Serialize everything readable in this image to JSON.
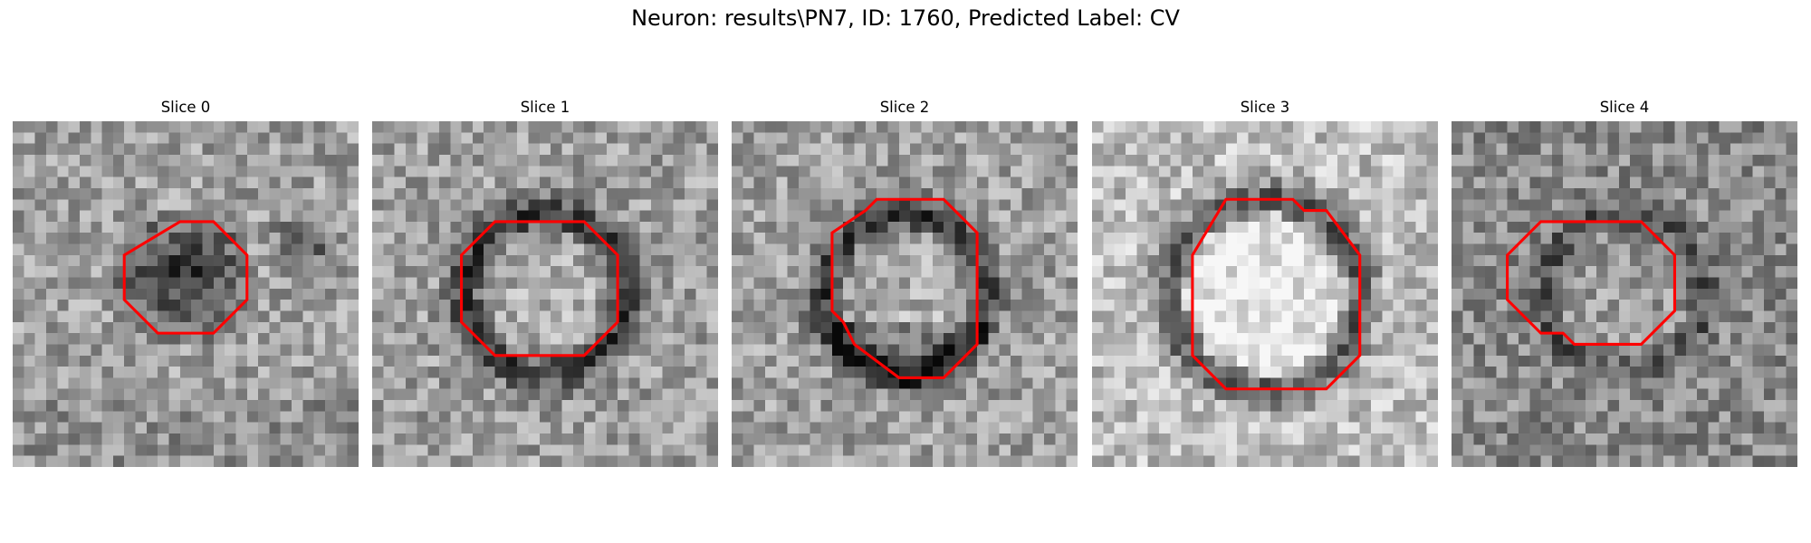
{
  "figure": {
    "title": "Neuron: results\\PN7, ID: 1760, Predicted Label: CV",
    "outline_color": "#ff0000"
  },
  "slices": [
    {
      "title": "Slice 0",
      "seed": 11,
      "pattern": "dark-blob",
      "contour": [
        [
          15,
          9
        ],
        [
          18,
          9
        ],
        [
          21,
          12
        ],
        [
          21,
          16
        ],
        [
          18,
          19
        ],
        [
          13,
          19
        ],
        [
          10,
          16
        ],
        [
          10,
          12
        ]
      ]
    },
    {
      "title": "Slice 1",
      "seed": 23,
      "pattern": "ring",
      "contour": [
        [
          11,
          9
        ],
        [
          19,
          9
        ],
        [
          22,
          12
        ],
        [
          22,
          18
        ],
        [
          19,
          21
        ],
        [
          11,
          21
        ],
        [
          8,
          18
        ],
        [
          8,
          12
        ]
      ]
    },
    {
      "title": "Slice 2",
      "seed": 37,
      "pattern": "ring-dark-bottom",
      "contour": [
        [
          13,
          7
        ],
        [
          19,
          7
        ],
        [
          22,
          10
        ],
        [
          22,
          20
        ],
        [
          19,
          23
        ],
        [
          15,
          23
        ],
        [
          11,
          20
        ],
        [
          10,
          18
        ],
        [
          9,
          17
        ],
        [
          9,
          10
        ],
        [
          12,
          8
        ]
      ]
    },
    {
      "title": "Slice 3",
      "seed": 51,
      "pattern": "ring-light",
      "contour": [
        [
          12,
          7
        ],
        [
          18,
          7
        ],
        [
          19,
          8
        ],
        [
          21,
          8
        ],
        [
          24,
          12
        ],
        [
          24,
          21
        ],
        [
          21,
          24
        ],
        [
          12,
          24
        ],
        [
          9,
          21
        ],
        [
          9,
          12
        ]
      ]
    },
    {
      "title": "Slice 4",
      "seed": 67,
      "pattern": "faint-ring",
      "contour": [
        [
          12,
          9
        ],
        [
          17,
          9
        ],
        [
          20,
          12
        ],
        [
          20,
          17
        ],
        [
          17,
          20
        ],
        [
          11,
          20
        ],
        [
          10,
          19
        ],
        [
          8,
          19
        ],
        [
          5,
          16
        ],
        [
          5,
          12
        ],
        [
          8,
          9
        ]
      ]
    }
  ]
}
